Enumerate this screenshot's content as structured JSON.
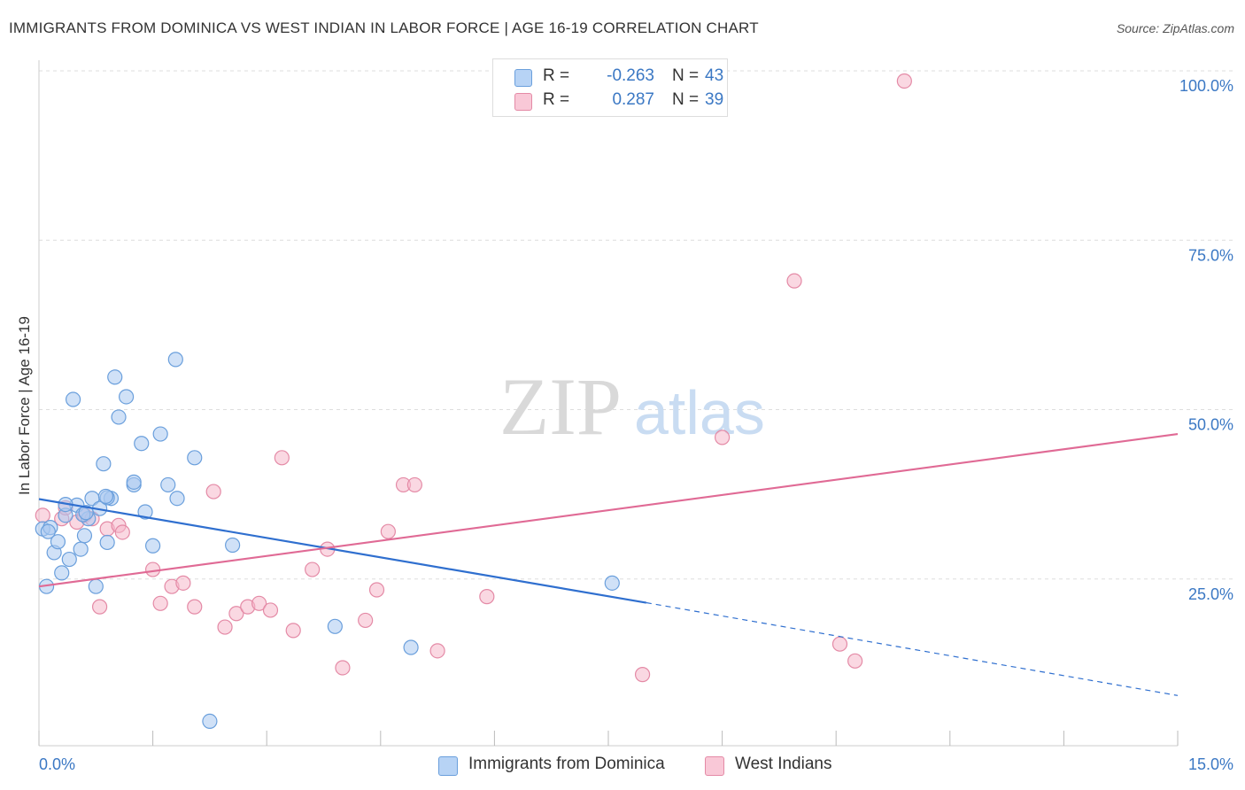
{
  "title": "IMMIGRANTS FROM DOMINICA VS WEST INDIAN IN LABOR FORCE | AGE 16-19 CORRELATION CHART",
  "source": "Source: ZipAtlas.com",
  "watermark": {
    "zip": "ZIP",
    "atlas": "atlas"
  },
  "colors": {
    "blue_fill": "#a9c9f0",
    "blue_stroke": "#6a9fdc",
    "blue_line": "#2f6fcf",
    "pink_fill": "#f5b8cb",
    "pink_stroke": "#e48aa6",
    "pink_line": "#e06a95",
    "axis_label": "#3b78c4",
    "grid": "#dddddd"
  },
  "legend_top": {
    "rows": [
      {
        "r_label": "R =",
        "r_value": "-0.263",
        "n_label": "N =",
        "n_value": "43"
      },
      {
        "r_label": "R =",
        "r_value": "0.287",
        "n_label": "N =",
        "n_value": "39"
      }
    ]
  },
  "legend_bottom": [
    "Immigrants from Dominica",
    "West Indians"
  ],
  "chart_data": {
    "type": "scatter",
    "title": "IMMIGRANTS FROM DOMINICA VS WEST INDIAN IN LABOR FORCE | AGE 16-19 CORRELATION CHART",
    "xlabel": "",
    "ylabel": "In Labor Force | Age 16-19",
    "xlim": [
      0,
      15
    ],
    "ylim": [
      0,
      105
    ],
    "x_tick_labels": [
      "0.0%",
      "15.0%"
    ],
    "y_tick_labels": [
      "100.0%",
      "75.0%",
      "50.0%",
      "25.0%"
    ],
    "y_ticks": [
      100,
      75,
      50,
      25
    ],
    "grid": true,
    "legend_position": "top-center",
    "series": [
      {
        "name": "Immigrants from Dominica",
        "r": -0.263,
        "n": 43,
        "trend": {
          "x0": 0,
          "y0": 36.8,
          "x1": 8.0,
          "y1": 21.5,
          "x_dash_end": 15,
          "y_dash_end": 7.8
        },
        "points": [
          [
            0.05,
            32.4
          ],
          [
            0.1,
            23.9
          ],
          [
            0.15,
            32.6
          ],
          [
            0.2,
            28.9
          ],
          [
            0.25,
            30.5
          ],
          [
            0.3,
            25.9
          ],
          [
            0.35,
            34.4
          ],
          [
            0.4,
            27.9
          ],
          [
            0.45,
            51.5
          ],
          [
            0.5,
            35.9
          ],
          [
            0.55,
            29.4
          ],
          [
            0.6,
            31.4
          ],
          [
            0.65,
            33.9
          ],
          [
            0.7,
            36.9
          ],
          [
            0.75,
            23.9
          ],
          [
            0.8,
            35.4
          ],
          [
            0.85,
            42.0
          ],
          [
            0.9,
            30.4
          ],
          [
            0.95,
            36.9
          ],
          [
            1.0,
            54.8
          ],
          [
            1.05,
            48.9
          ],
          [
            1.15,
            51.9
          ],
          [
            1.25,
            38.9
          ],
          [
            1.35,
            45.0
          ],
          [
            1.4,
            34.9
          ],
          [
            1.5,
            29.9
          ],
          [
            1.6,
            46.4
          ],
          [
            1.7,
            38.9
          ],
          [
            1.8,
            57.4
          ],
          [
            1.82,
            36.9
          ],
          [
            2.05,
            42.9
          ],
          [
            2.25,
            4.0
          ],
          [
            2.55,
            30.0
          ],
          [
            3.9,
            18.0
          ],
          [
            4.9,
            14.9
          ],
          [
            7.55,
            24.4
          ],
          [
            0.12,
            32.0
          ],
          [
            0.9,
            37.0
          ],
          [
            0.58,
            34.5
          ],
          [
            1.25,
            39.3
          ],
          [
            0.88,
            37.2
          ],
          [
            0.35,
            36.0
          ],
          [
            0.62,
            34.8
          ]
        ]
      },
      {
        "name": "West Indians",
        "r": 0.287,
        "n": 39,
        "trend": {
          "x0": 0,
          "y0": 23.9,
          "x1": 15,
          "y1": 46.4
        },
        "points": [
          [
            0.05,
            34.4
          ],
          [
            0.3,
            33.9
          ],
          [
            0.5,
            33.4
          ],
          [
            0.6,
            34.4
          ],
          [
            0.7,
            33.9
          ],
          [
            0.8,
            20.9
          ],
          [
            0.9,
            32.4
          ],
          [
            1.05,
            32.9
          ],
          [
            1.1,
            31.9
          ],
          [
            1.5,
            26.4
          ],
          [
            1.6,
            21.4
          ],
          [
            1.75,
            23.9
          ],
          [
            1.9,
            24.4
          ],
          [
            2.05,
            20.9
          ],
          [
            2.3,
            37.9
          ],
          [
            2.45,
            17.9
          ],
          [
            2.6,
            19.9
          ],
          [
            2.75,
            20.9
          ],
          [
            2.9,
            21.4
          ],
          [
            3.05,
            20.4
          ],
          [
            3.2,
            42.9
          ],
          [
            3.35,
            17.4
          ],
          [
            3.6,
            26.4
          ],
          [
            3.8,
            29.4
          ],
          [
            4.0,
            11.9
          ],
          [
            4.3,
            18.9
          ],
          [
            4.45,
            23.4
          ],
          [
            4.6,
            32.0
          ],
          [
            4.8,
            38.9
          ],
          [
            4.95,
            38.9
          ],
          [
            5.25,
            14.4
          ],
          [
            5.9,
            22.4
          ],
          [
            7.95,
            10.9
          ],
          [
            9.0,
            45.9
          ],
          [
            9.95,
            69.0
          ],
          [
            10.55,
            15.4
          ],
          [
            10.75,
            12.9
          ],
          [
            11.4,
            98.5
          ],
          [
            0.35,
            35.5
          ]
        ]
      }
    ]
  }
}
